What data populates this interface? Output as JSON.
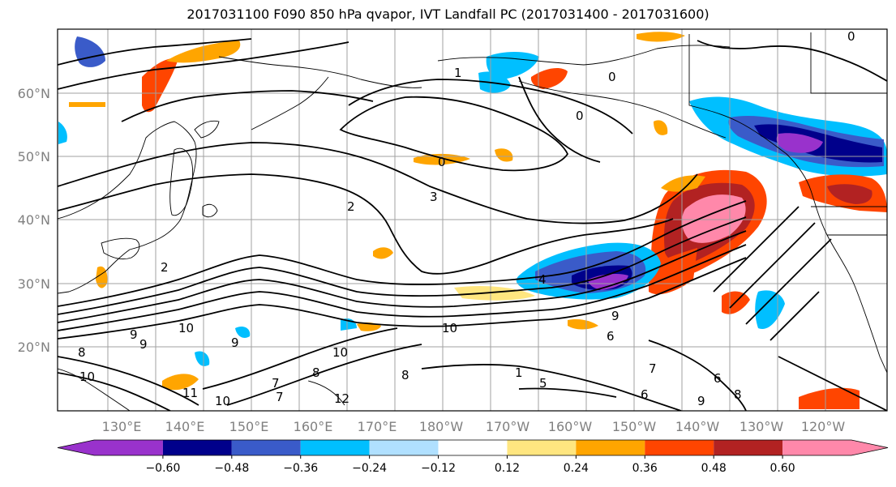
{
  "title": "2017031100 F090 850 hPa qvapor, IVT Landfall PC (2017031400 - 2017031600)",
  "lat_ticks": [
    "60°N",
    "50°N",
    "40°N",
    "30°N",
    "20°N"
  ],
  "lon_ticks": [
    "130°E",
    "140°E",
    "150°E",
    "160°E",
    "170°E",
    "180°W",
    "170°W",
    "160°W",
    "150°W",
    "140°W",
    "130°W",
    "120°W"
  ],
  "colorbar": {
    "colors": [
      "#9932cc",
      "#00008b",
      "#3a5bc9",
      "#00bfff",
      "#b0e0ff",
      "#ffffff",
      "#ffe680",
      "#ffa500",
      "#ff4500",
      "#b22222",
      "#ff88aa"
    ],
    "tick_labels": [
      "−0.60",
      "−0.48",
      "−0.36",
      "−0.24",
      "−0.12",
      "0.12",
      "0.24",
      "0.36",
      "0.48",
      "0.60"
    ]
  },
  "contour_labels": [
    "1",
    "0",
    "0",
    "0",
    "0",
    "2",
    "3",
    "2",
    "4",
    "9",
    "10",
    "9",
    "8",
    "10",
    "6",
    "9",
    "10",
    "8",
    "7",
    "1",
    "5",
    "7",
    "6",
    "8",
    "9",
    "10",
    "6",
    "7",
    "8",
    "9",
    "10",
    "11",
    "12"
  ]
}
